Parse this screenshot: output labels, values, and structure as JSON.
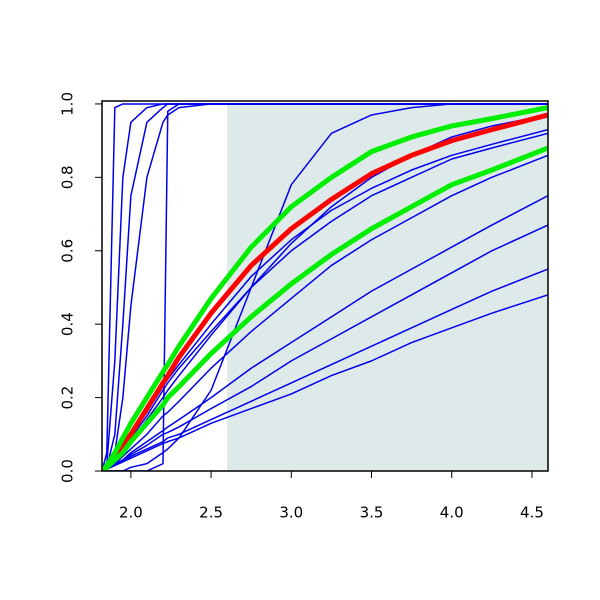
{
  "chart_data": {
    "type": "line",
    "x": [
      1.82,
      1.85,
      1.9,
      1.95,
      2.0,
      2.1,
      2.2,
      2.23,
      2.3,
      2.5,
      2.75,
      3.0,
      3.25,
      3.5,
      3.75,
      4.0,
      4.25,
      4.6
    ],
    "xlim": [
      1.82,
      4.6
    ],
    "ylim": [
      0,
      1.008
    ],
    "xticks": [
      {
        "value": 2.0,
        "label": "2.0"
      },
      {
        "value": 2.5,
        "label": "2.5"
      },
      {
        "value": 3.0,
        "label": "3.0"
      },
      {
        "value": 3.5,
        "label": "3.5"
      },
      {
        "value": 4.0,
        "label": "4.0"
      },
      {
        "value": 4.5,
        "label": "4.5"
      }
    ],
    "yticks": [
      {
        "value": 0,
        "label": "0.0"
      },
      {
        "value": 0.2,
        "label": "0.2"
      },
      {
        "value": 0.4,
        "label": "0.4"
      },
      {
        "value": 0.6,
        "label": "0.6"
      },
      {
        "value": 0.8,
        "label": "0.8"
      },
      {
        "value": 1,
        "label": "1.0"
      }
    ],
    "shaded_region": {
      "x": [
        2.6,
        4.6
      ],
      "y": [
        0,
        1
      ],
      "color": "#deeaea"
    },
    "series": [
      {
        "color": "#0000ee",
        "width": 1.5,
        "values": [
          0,
          0.05,
          0.99,
          1,
          1,
          1,
          1,
          1,
          1,
          1,
          1,
          1,
          1,
          1,
          1,
          1,
          1,
          1
        ]
      },
      {
        "color": "#0000ee",
        "width": 1.5,
        "values": [
          0,
          0.02,
          0.3,
          0.8,
          0.95,
          0.99,
          1,
          1,
          1,
          1,
          1,
          1,
          1,
          1,
          1,
          1,
          1,
          1
        ]
      },
      {
        "color": "#0000ee",
        "width": 1.5,
        "values": [
          0,
          0.01,
          0.1,
          0.4,
          0.75,
          0.95,
          0.99,
          1,
          1,
          1,
          1,
          1,
          1,
          1,
          1,
          1,
          1,
          1
        ]
      },
      {
        "color": "#0000ee",
        "width": 1.5,
        "values": [
          0,
          0,
          0,
          0,
          0,
          0,
          0.02,
          0.98,
          1,
          1,
          1,
          1,
          1,
          1,
          1,
          1,
          1,
          1
        ]
      },
      {
        "color": "#0000ee",
        "width": 1.5,
        "values": [
          0,
          0.01,
          0.05,
          0.2,
          0.45,
          0.8,
          0.95,
          0.97,
          0.99,
          1,
          1,
          1,
          1,
          1,
          1,
          1,
          1,
          1
        ]
      },
      {
        "color": "#0000ee",
        "width": 1.5,
        "values": [
          0,
          0,
          0,
          0,
          0.01,
          0.02,
          0.05,
          0.06,
          0.09,
          0.22,
          0.5,
          0.78,
          0.92,
          0.97,
          0.99,
          1,
          1,
          1
        ]
      },
      {
        "color": "#0000ee",
        "width": 1.5,
        "values": [
          0,
          0.01,
          0.03,
          0.06,
          0.09,
          0.15,
          0.22,
          0.24,
          0.28,
          0.38,
          0.5,
          0.6,
          0.68,
          0.75,
          0.8,
          0.85,
          0.88,
          0.92
        ]
      },
      {
        "color": "#0000ee",
        "width": 1.5,
        "values": [
          0,
          0.01,
          0.02,
          0.04,
          0.06,
          0.1,
          0.15,
          0.16,
          0.19,
          0.28,
          0.38,
          0.47,
          0.56,
          0.63,
          0.69,
          0.75,
          0.8,
          0.86
        ]
      },
      {
        "color": "#0000ee",
        "width": 1.5,
        "values": [
          0,
          0.005,
          0.02,
          0.03,
          0.05,
          0.08,
          0.11,
          0.12,
          0.14,
          0.2,
          0.28,
          0.35,
          0.42,
          0.49,
          0.55,
          0.61,
          0.67,
          0.75
        ]
      },
      {
        "color": "#0000ee",
        "width": 1.5,
        "values": [
          0,
          0.005,
          0.015,
          0.025,
          0.04,
          0.06,
          0.08,
          0.09,
          0.1,
          0.14,
          0.19,
          0.24,
          0.29,
          0.34,
          0.39,
          0.44,
          0.49,
          0.55
        ]
      },
      {
        "color": "#0000ee",
        "width": 1.5,
        "values": [
          0,
          0.005,
          0.015,
          0.025,
          0.035,
          0.055,
          0.075,
          0.08,
          0.09,
          0.13,
          0.17,
          0.21,
          0.26,
          0.3,
          0.35,
          0.39,
          0.43,
          0.48
        ]
      },
      {
        "color": "#0000ee",
        "width": 1.5,
        "values": [
          0,
          0.006,
          0.018,
          0.03,
          0.045,
          0.07,
          0.1,
          0.105,
          0.12,
          0.17,
          0.23,
          0.3,
          0.36,
          0.42,
          0.48,
          0.54,
          0.6,
          0.67
        ]
      },
      {
        "color": "#0000ee",
        "width": 1.5,
        "values": [
          0,
          0.01,
          0.03,
          0.05,
          0.08,
          0.14,
          0.2,
          0.22,
          0.26,
          0.37,
          0.5,
          0.62,
          0.72,
          0.8,
          0.86,
          0.91,
          0.94,
          0.97
        ]
      },
      {
        "color": "#0000ee",
        "width": 1.5,
        "values": [
          0,
          0.015,
          0.04,
          0.07,
          0.1,
          0.16,
          0.23,
          0.25,
          0.29,
          0.4,
          0.53,
          0.63,
          0.71,
          0.77,
          0.82,
          0.86,
          0.89,
          0.93
        ]
      },
      {
        "color": "#ff0000",
        "width": 5,
        "values": [
          0,
          0.01,
          0.04,
          0.07,
          0.1,
          0.17,
          0.24,
          0.26,
          0.31,
          0.43,
          0.56,
          0.66,
          0.74,
          0.81,
          0.86,
          0.9,
          0.93,
          0.97
        ]
      },
      {
        "color": "#00ee00",
        "width": 5,
        "values": [
          0,
          0.015,
          0.05,
          0.09,
          0.13,
          0.2,
          0.27,
          0.29,
          0.34,
          0.47,
          0.61,
          0.72,
          0.8,
          0.87,
          0.91,
          0.94,
          0.96,
          0.99
        ]
      },
      {
        "color": "#00ee00",
        "width": 5,
        "values": [
          0,
          0.01,
          0.03,
          0.05,
          0.08,
          0.13,
          0.18,
          0.2,
          0.23,
          0.32,
          0.42,
          0.51,
          0.59,
          0.66,
          0.72,
          0.78,
          0.82,
          0.88
        ]
      }
    ]
  }
}
